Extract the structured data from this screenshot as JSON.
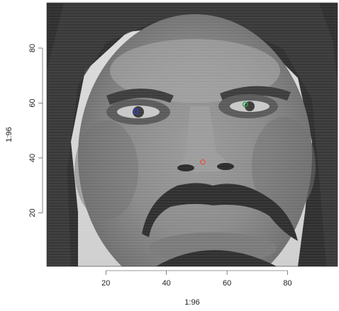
{
  "chart_data": {
    "type": "scatter",
    "title": "",
    "xlabel": "1:96",
    "ylabel": "1:96",
    "xlim": [
      0.5,
      96.5
    ],
    "ylim": [
      0.5,
      96.5
    ],
    "x_ticks": [
      20,
      40,
      60,
      80
    ],
    "y_ticks": [
      20,
      40,
      60,
      80
    ],
    "background": "grayscale face image (96x96 pixels)",
    "series": [
      {
        "color": "#3a3ad6",
        "points": [
          {
            "x": 30,
            "y": 57
          }
        ]
      },
      {
        "color": "#2aa84a",
        "points": [
          {
            "x": 66,
            "y": 59.5
          }
        ]
      },
      {
        "color": "#e05a4a",
        "points": [
          {
            "x": 52,
            "y": 38.5
          }
        ]
      }
    ],
    "grid": false,
    "legend": "none"
  }
}
